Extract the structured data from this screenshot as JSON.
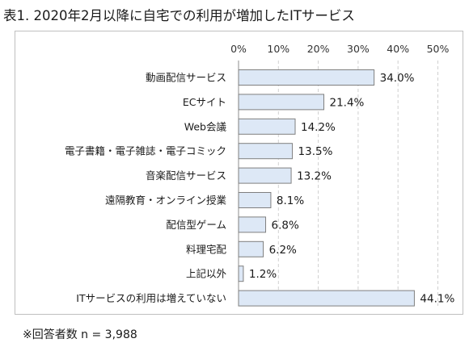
{
  "title": "表1. 2020年2月以降に自宅での利用が増加したITサービス",
  "footnote": "※回答者数 n = 3,988",
  "chart_data": {
    "type": "bar",
    "orientation": "horizontal",
    "categories": [
      "動画配信サービス",
      "ECサイト",
      "Web会議",
      "電子書籍・電子雑誌・電子コミック",
      "音楽配信サービス",
      "遠隔教育・オンライン授業",
      "配信型ゲーム",
      "料理宅配",
      "上記以外",
      "ITサービスの利用は増えていない"
    ],
    "values": [
      34.0,
      21.4,
      14.2,
      13.5,
      13.2,
      8.1,
      6.8,
      6.2,
      1.2,
      44.1
    ],
    "value_labels": [
      "34.0%",
      "21.4%",
      "14.2%",
      "13.5%",
      "13.2%",
      "8.1%",
      "6.8%",
      "6.2%",
      "1.2%",
      "44.1%"
    ],
    "xlim": [
      0,
      50
    ],
    "x_ticks": [
      "0%",
      "10%",
      "20%",
      "30%",
      "40%",
      "50%"
    ],
    "x_tick_values": [
      0,
      10,
      20,
      30,
      40,
      50
    ],
    "grid": true,
    "axis_position": "top",
    "bar_color": "#dde8f6",
    "bar_edge_color": "#7f7f7f",
    "grid_color": "#d0d0d0"
  }
}
